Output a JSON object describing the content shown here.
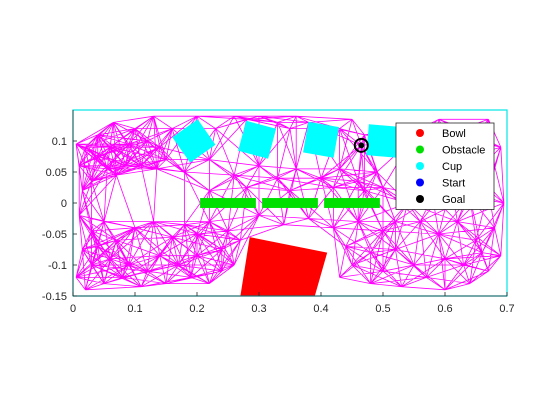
{
  "chart_data": {
    "type": "scatter",
    "title": "",
    "xlabel": "",
    "ylabel": "",
    "xlim": [
      0,
      0.7
    ],
    "ylim": [
      -0.15,
      0.15
    ],
    "xticks": [
      "0",
      "0.1",
      "0.2",
      "0.3",
      "0.4",
      "0.5",
      "0.6",
      "0.7"
    ],
    "xtick_values": [
      0,
      0.1,
      0.2,
      0.3,
      0.4,
      0.5,
      0.6,
      0.7
    ],
    "yticks": [
      "0.1",
      "0.05",
      "0",
      "-0.05",
      "-0.1",
      "-0.15"
    ],
    "ytick_values": [
      0.1,
      0.05,
      0,
      -0.05,
      -0.1,
      -0.15
    ],
    "grid": false,
    "legend_position": "top-right",
    "legend": [
      {
        "label": "Bowl",
        "color": "#ff0000"
      },
      {
        "label": "Obstacle",
        "color": "#00e000"
      },
      {
        "label": "Cup",
        "color": "#00ffff"
      },
      {
        "label": "Start",
        "color": "#0000ff"
      },
      {
        "label": "Goal",
        "color": "#000000"
      }
    ],
    "colors": {
      "workspace_border": "#00e5e5",
      "roadmap": "#ff00ff",
      "cup": "#00ffff",
      "obstacle": "#00e000",
      "bowl": "#ff0000",
      "goal": "#000000"
    },
    "cups": [
      {
        "cx": 0.195,
        "cy": 0.1,
        "w": 0.05,
        "angle": -35
      },
      {
        "cx": 0.297,
        "cy": 0.102,
        "w": 0.05,
        "angle": 15
      },
      {
        "cx": 0.4,
        "cy": 0.102,
        "w": 0.05,
        "angle": 10
      },
      {
        "cx": 0.5,
        "cy": 0.1,
        "w": 0.05,
        "angle": 5
      }
    ],
    "obstacles": [
      {
        "x0": 0.205,
        "x1": 0.295,
        "y0": -0.008,
        "y1": 0.008
      },
      {
        "x0": 0.305,
        "x1": 0.395,
        "y0": -0.008,
        "y1": 0.008
      },
      {
        "x0": 0.405,
        "x1": 0.495,
        "y0": -0.008,
        "y1": 0.008
      }
    ],
    "bowl": [
      [
        0.285,
        -0.055
      ],
      [
        0.41,
        -0.08
      ],
      [
        0.39,
        -0.16
      ],
      [
        0.27,
        -0.16
      ]
    ],
    "goal": {
      "x": 0.465,
      "y": 0.093
    },
    "roadmap_nodes": [
      [
        0.005,
        0.095
      ],
      [
        0.02,
        0.09
      ],
      [
        0.04,
        0.075
      ],
      [
        0.06,
        0.09
      ],
      [
        0.09,
        0.095
      ],
      [
        0.12,
        0.1
      ],
      [
        0.14,
        0.09
      ],
      [
        0.15,
        0.07
      ],
      [
        0.135,
        0.055
      ],
      [
        0.11,
        0.06
      ],
      [
        0.085,
        0.06
      ],
      [
        0.07,
        0.045
      ],
      [
        0.055,
        0.055
      ],
      [
        0.03,
        0.035
      ],
      [
        0.015,
        0.02
      ],
      [
        0.01,
        0.06
      ],
      [
        0.04,
        0.11
      ],
      [
        0.1,
        0.12
      ],
      [
        0.13,
        0.14
      ],
      [
        0.065,
        0.13
      ],
      [
        0.01,
        -0.02
      ],
      [
        0.03,
        -0.045
      ],
      [
        0.05,
        -0.03
      ],
      [
        0.07,
        -0.06
      ],
      [
        0.1,
        -0.04
      ],
      [
        0.13,
        -0.03
      ],
      [
        0.16,
        -0.055
      ],
      [
        0.18,
        -0.035
      ],
      [
        0.2,
        -0.05
      ],
      [
        0.22,
        -0.03
      ],
      [
        0.25,
        -0.045
      ],
      [
        0.27,
        -0.06
      ],
      [
        0.24,
        -0.075
      ],
      [
        0.2,
        -0.085
      ],
      [
        0.17,
        -0.1
      ],
      [
        0.14,
        -0.085
      ],
      [
        0.12,
        -0.11
      ],
      [
        0.09,
        -0.1
      ],
      [
        0.06,
        -0.09
      ],
      [
        0.03,
        -0.1
      ],
      [
        0.005,
        -0.12
      ],
      [
        0.02,
        -0.14
      ],
      [
        0.05,
        -0.13
      ],
      [
        0.08,
        -0.12
      ],
      [
        0.11,
        -0.135
      ],
      [
        0.15,
        -0.13
      ],
      [
        0.19,
        -0.12
      ],
      [
        0.22,
        -0.13
      ],
      [
        0.24,
        -0.11
      ],
      [
        0.26,
        -0.1
      ],
      [
        0.04,
        -0.07
      ],
      [
        0.015,
        -0.075
      ],
      [
        0.16,
        0.12
      ],
      [
        0.2,
        0.14
      ],
      [
        0.23,
        0.12
      ],
      [
        0.26,
        0.14
      ],
      [
        0.28,
        0.135
      ],
      [
        0.3,
        0.14
      ],
      [
        0.33,
        0.13
      ],
      [
        0.35,
        0.12
      ],
      [
        0.36,
        0.14
      ],
      [
        0.38,
        0.13
      ],
      [
        0.43,
        0.12
      ],
      [
        0.45,
        0.135
      ],
      [
        0.47,
        0.11
      ],
      [
        0.465,
        0.093
      ],
      [
        0.18,
        0.05
      ],
      [
        0.22,
        0.07
      ],
      [
        0.26,
        0.045
      ],
      [
        0.3,
        0.06
      ],
      [
        0.33,
        0.04
      ],
      [
        0.36,
        0.055
      ],
      [
        0.4,
        0.04
      ],
      [
        0.43,
        0.055
      ],
      [
        0.46,
        0.035
      ],
      [
        0.49,
        0.05
      ],
      [
        0.5,
        0.025
      ],
      [
        0.47,
        0.02
      ],
      [
        0.42,
        0.025
      ],
      [
        0.35,
        0.02
      ],
      [
        0.28,
        0.025
      ],
      [
        0.22,
        0.02
      ],
      [
        0.3,
        -0.02
      ],
      [
        0.34,
        -0.035
      ],
      [
        0.38,
        -0.025
      ],
      [
        0.42,
        -0.04
      ],
      [
        0.46,
        -0.03
      ],
      [
        0.5,
        -0.045
      ],
      [
        0.52,
        -0.03
      ],
      [
        0.44,
        -0.07
      ],
      [
        0.48,
        -0.08
      ],
      [
        0.52,
        -0.075
      ],
      [
        0.45,
        -0.1
      ],
      [
        0.5,
        -0.11
      ],
      [
        0.55,
        -0.1
      ],
      [
        0.57,
        -0.12
      ],
      [
        0.53,
        -0.135
      ],
      [
        0.48,
        -0.13
      ],
      [
        0.43,
        -0.12
      ],
      [
        0.6,
        -0.14
      ],
      [
        0.64,
        -0.13
      ],
      [
        0.67,
        -0.11
      ],
      [
        0.69,
        -0.085
      ],
      [
        0.54,
        0.0
      ],
      [
        0.56,
        -0.03
      ],
      [
        0.59,
        -0.05
      ],
      [
        0.62,
        -0.03
      ],
      [
        0.65,
        -0.06
      ],
      [
        0.68,
        -0.04
      ],
      [
        0.58,
        0.01
      ],
      [
        0.61,
        0.03
      ],
      [
        0.64,
        0.01
      ],
      [
        0.67,
        0.02
      ],
      [
        0.695,
        0.0
      ],
      [
        0.6,
        -0.09
      ],
      [
        0.63,
        -0.1
      ],
      [
        0.66,
        -0.08
      ],
      [
        0.58,
        0.08
      ],
      [
        0.6,
        0.11
      ],
      [
        0.63,
        0.12
      ],
      [
        0.66,
        0.1
      ],
      [
        0.69,
        0.09
      ],
      [
        0.62,
        0.07
      ],
      [
        0.65,
        0.05
      ],
      [
        0.68,
        0.06
      ],
      [
        0.56,
        0.12
      ],
      [
        0.59,
        0.135
      ],
      [
        0.545,
        0.1
      ],
      [
        0.67,
        0.135
      ]
    ]
  }
}
